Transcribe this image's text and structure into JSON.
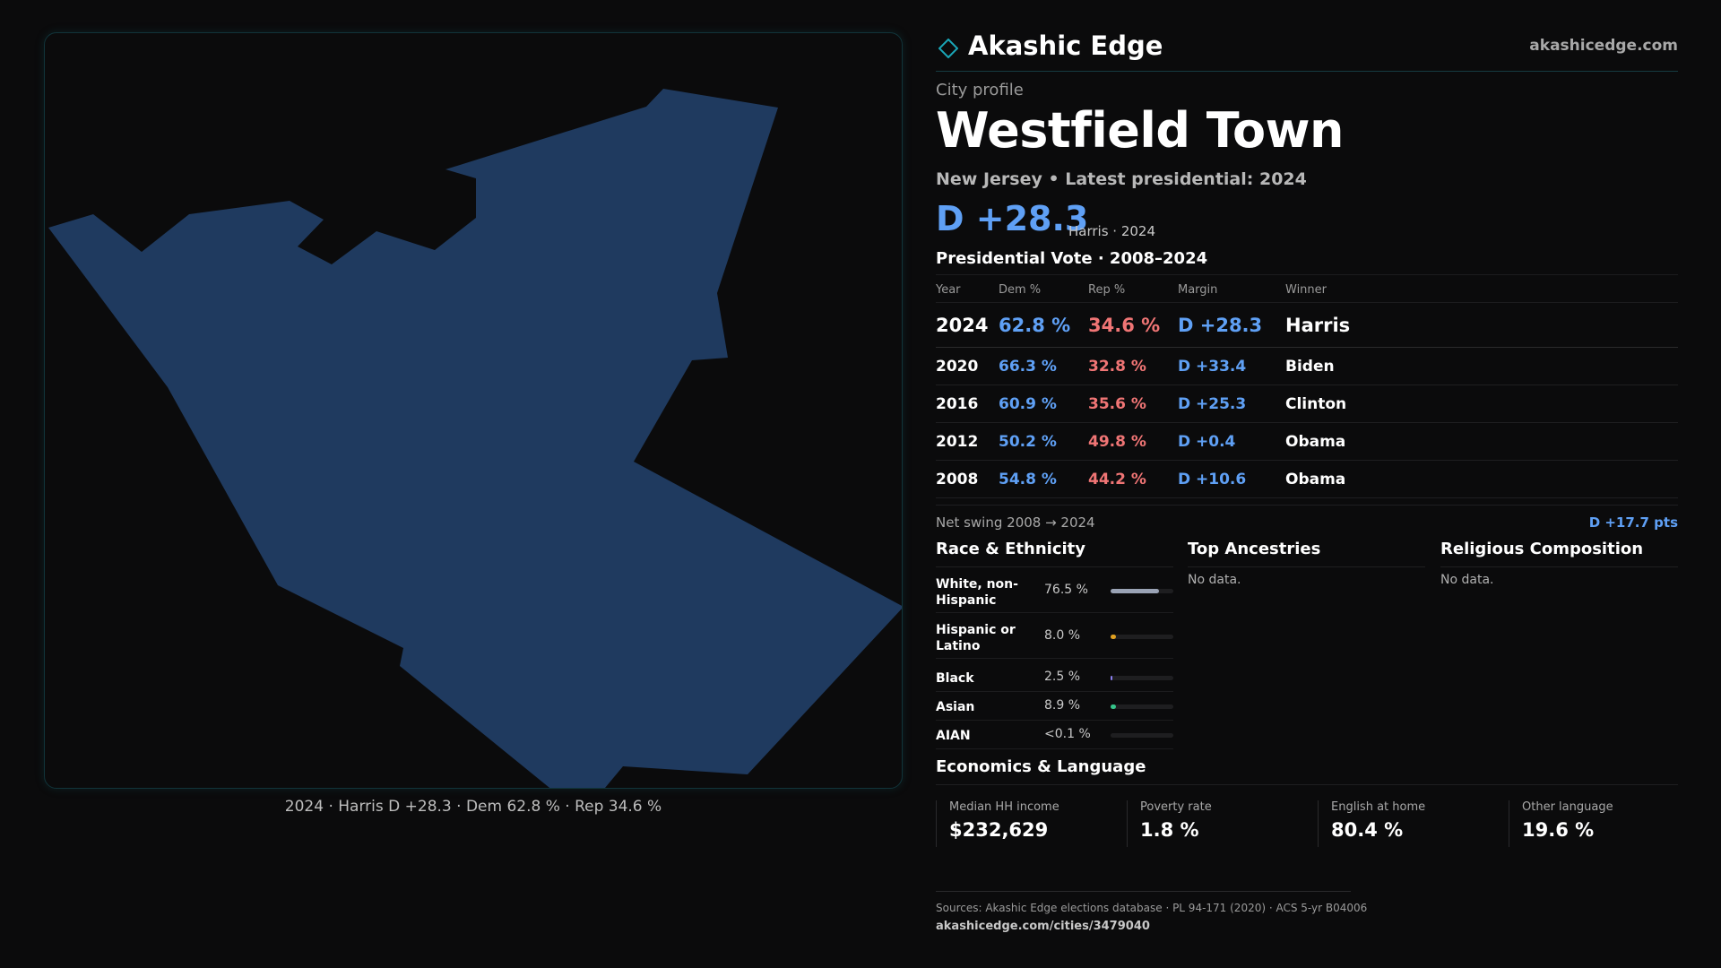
{
  "brand": {
    "name": "Akashic Edge",
    "site": "akashicedge.com",
    "logo_icon": "diamond-outline-icon",
    "accent_color": "#1aa6b7"
  },
  "map": {
    "caption": "2024 · Harris D +28.3 · Dem 62.8 % · Rep 34.6 %",
    "fill_color": "#1f3a5f"
  },
  "profile": {
    "eyebrow": "City profile",
    "city": "Westfield Town",
    "subtitle": "New Jersey • Latest presidential: 2024",
    "headline_margin": "D +28.3",
    "headline_note": "Harris · 2024"
  },
  "vote": {
    "title": "Presidential Vote · 2008–2024",
    "headers": {
      "year": "Year",
      "dem": "Dem %",
      "rep": "Rep %",
      "margin": "Margin",
      "winner": "Winner"
    },
    "rows": [
      {
        "year": "2024",
        "dem": "62.8 %",
        "rep": "34.6 %",
        "margin": "D +28.3",
        "winner": "Harris"
      },
      {
        "year": "2020",
        "dem": "66.3 %",
        "rep": "32.8 %",
        "margin": "D +33.4",
        "winner": "Biden"
      },
      {
        "year": "2016",
        "dem": "60.9 %",
        "rep": "35.6 %",
        "margin": "D +25.3",
        "winner": "Clinton"
      },
      {
        "year": "2012",
        "dem": "50.2 %",
        "rep": "49.8 %",
        "margin": "D +0.4",
        "winner": "Obama"
      },
      {
        "year": "2008",
        "dem": "54.8 %",
        "rep": "44.2 %",
        "margin": "D +10.6",
        "winner": "Obama"
      }
    ],
    "swing_label": "Net swing 2008 → 2024",
    "swing_value": "D +17.7 pts",
    "colors": {
      "dem": "#5fa0f5",
      "rep": "#f07575"
    }
  },
  "race": {
    "title": "Race & Ethnicity",
    "items": [
      {
        "label": "White, non-\nHispanic",
        "value": "76.5 %",
        "pct": 76.5,
        "color": "#9aa3b5"
      },
      {
        "label": "Hispanic or\nLatino",
        "value": "8.0 %",
        "pct": 8.0,
        "color": "#e0a020"
      },
      {
        "label": "Black",
        "value": "2.5 %",
        "pct": 2.5,
        "color": "#8b7ff0"
      },
      {
        "label": "Asian",
        "value": "8.9 %",
        "pct": 8.9,
        "color": "#35c48a"
      },
      {
        "label": "AIAN",
        "value": "<0.1 %",
        "pct": 0.05,
        "color": "#c05050"
      }
    ]
  },
  "ancestries": {
    "title": "Top Ancestries",
    "empty": "No data."
  },
  "religion": {
    "title": "Religious Composition",
    "empty": "No data."
  },
  "economics": {
    "title": "Economics & Language",
    "stats": [
      {
        "label": "Median HH income",
        "value": "$232,629"
      },
      {
        "label": "Poverty rate",
        "value": "1.8 %"
      },
      {
        "label": "English at home",
        "value": "80.4 %"
      },
      {
        "label": "Other language",
        "value": "19.6 %"
      }
    ]
  },
  "footer": {
    "sources": "Sources: Akashic Edge elections database · PL 94-171 (2020) · ACS 5-yr B04006",
    "url": "akashicedge.com/cities/3479040"
  }
}
